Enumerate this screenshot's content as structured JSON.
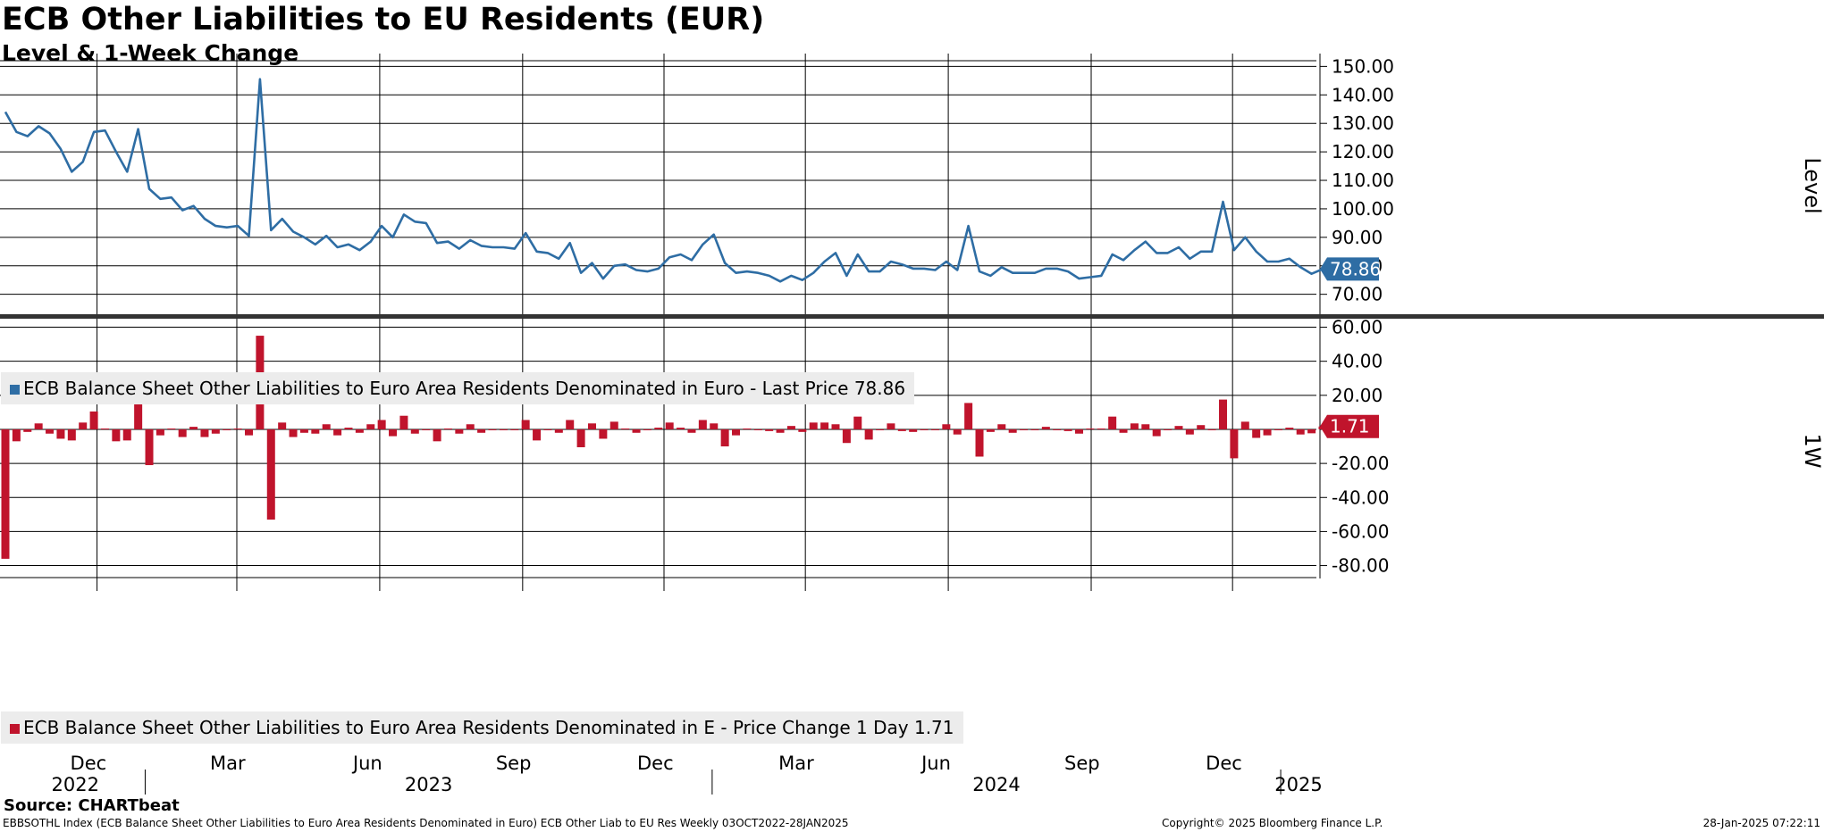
{
  "header": {
    "title": "ECB Other Liabilities to EU Residents (EUR)",
    "subtitle": "Level & 1-Week Change"
  },
  "footer": {
    "source": "Source: CHARTbeat",
    "ticker_info": "EBBSOTHL Index (ECB Balance Sheet Other Liabilities to Euro Area Residents Denominated in Euro) ECB Other Liab to EU Res  Weekly 03OCT2022-28JAN2025",
    "copyright": "Copyright© 2025 Bloomberg Finance L.P.",
    "timestamp": "28-Jan-2025 07:22:11"
  },
  "colors": {
    "level": "#2e6da4",
    "change": "#c0142c",
    "divider": "#333333"
  },
  "chart_data": [
    {
      "type": "line",
      "ylabel": "Level",
      "ylim": [
        63,
        152
      ],
      "yticks": [
        "150.00",
        "140.00",
        "130.00",
        "120.00",
        "110.00",
        "100.00",
        "90.00",
        "80.00",
        "70.00"
      ],
      "legend": "ECB Balance Sheet Other Liabilities to Euro Area Residents Denominated in Euro - Last Price 78.86",
      "last_value_label": "78.86",
      "series": [
        {
          "name": "ECB Balance Sheet Other Liabilities to Euro Area Residents Denominated in Euro",
          "values": [
            134,
            127,
            125.5,
            129,
            126.5,
            121,
            113,
            116.5,
            127,
            127.5,
            120,
            113,
            128,
            107,
            103.5,
            104,
            99.5,
            101,
            96.5,
            94,
            93.5,
            94,
            90.5,
            145.5,
            92.5,
            96.5,
            92,
            90,
            87.5,
            90.5,
            86.5,
            87.5,
            85.5,
            88.5,
            94,
            90,
            98,
            95.5,
            95,
            88,
            88.5,
            86,
            89,
            87,
            86.5,
            86.5,
            86,
            91.5,
            85,
            84.5,
            82.5,
            88,
            77.5,
            81,
            75.5,
            80,
            80.5,
            78.5,
            78,
            79,
            83,
            84,
            82,
            87.5,
            91,
            81,
            77.5,
            78,
            77.5,
            76.5,
            74.5,
            76.5,
            75,
            77.5,
            81.5,
            84.5,
            76.5,
            84,
            78,
            78,
            81.5,
            80.5,
            79,
            79,
            78.5,
            81.5,
            78.5,
            94,
            78,
            76.5,
            79.5,
            77.5,
            77.5,
            77.5,
            79,
            79,
            78,
            75.5,
            76,
            76.5,
            84,
            82,
            85.5,
            88.5,
            84.5,
            84.5,
            86.5,
            82.5,
            85,
            85,
            102.5,
            85.5,
            90,
            85,
            81.5,
            81.5,
            82.5,
            79.5,
            77.2,
            78.86
          ]
        }
      ]
    },
    {
      "type": "bar",
      "ylabel": "1W",
      "ylim": [
        -86,
        65
      ],
      "yticks": [
        "60.00",
        "40.00",
        "20.00",
        "0.00",
        "-20.00",
        "-40.00",
        "-60.00",
        "-80.00"
      ],
      "legend": "ECB Balance Sheet Other Liabilities to Euro Area Residents Denominated in E - Price Change 1 Day 1.71",
      "last_value_label": "1.71",
      "series": [
        {
          "name": "ECB Balance Sheet Other Liabilities to Euro Area Residents Denominated in E",
          "values": [
            -76,
            -7,
            -1.5,
            3.5,
            -2.5,
            -5.5,
            -6.5,
            4,
            10.5,
            0.5,
            -7,
            -6.5,
            15,
            -21,
            -3.5,
            0.5,
            -4.5,
            1.5,
            -4.5,
            -2.5,
            -0.5,
            0.5,
            -3.5,
            55,
            -53,
            4,
            -4.5,
            -2,
            -2.5,
            3,
            -3.5,
            1,
            -2,
            3,
            5.5,
            -4,
            8,
            -2.5,
            -0.5,
            -7,
            0.5,
            -2.5,
            3,
            -2,
            -0.5,
            0,
            -0.5,
            5.5,
            -6.5,
            -0.5,
            -2,
            5.5,
            -10.5,
            3.5,
            -5.5,
            4.5,
            0.5,
            -2,
            -0.5,
            1,
            4,
            1,
            -2,
            5.5,
            3.5,
            -10,
            -3.5,
            0.5,
            -0.5,
            -1,
            -2,
            2,
            -1.5,
            4,
            4,
            3,
            -8,
            7.5,
            -6,
            0,
            3.5,
            -1,
            -1.5,
            0,
            -0.5,
            3,
            -3,
            15.5,
            -16,
            -1.5,
            3,
            -2,
            0,
            0,
            1.5,
            0,
            -1,
            -2.5,
            0.5,
            0.5,
            7.5,
            -2,
            3.5,
            3,
            -4,
            0,
            2,
            -3,
            2.5,
            0,
            17.5,
            -17,
            4.5,
            -5,
            -3.5,
            0,
            1,
            -3,
            -2.3,
            1.71
          ]
        }
      ]
    }
  ],
  "x_axis": {
    "month_labels": [
      {
        "label": "Dec",
        "date": "2022-12-01"
      },
      {
        "label": "Mar",
        "date": "2023-03-01"
      },
      {
        "label": "Jun",
        "date": "2023-06-01"
      },
      {
        "label": "Sep",
        "date": "2023-09-01"
      },
      {
        "label": "Dec",
        "date": "2023-12-01"
      },
      {
        "label": "Mar",
        "date": "2024-03-01"
      },
      {
        "label": "Jun",
        "date": "2024-06-01"
      },
      {
        "label": "Sep",
        "date": "2024-09-01"
      },
      {
        "label": "Dec",
        "date": "2024-12-01"
      }
    ],
    "year_labels": [
      {
        "label": "2022",
        "start": "2022-10-03",
        "end": "2023-01-01"
      },
      {
        "label": "2023",
        "start": "2023-01-01",
        "end": "2024-01-01"
      },
      {
        "label": "2024",
        "start": "2024-01-01",
        "end": "2025-01-01"
      },
      {
        "label": "2025",
        "start": "2025-01-01",
        "end": "2025-01-28"
      }
    ],
    "start_date": "2022-10-03",
    "end_date": "2025-01-28"
  }
}
